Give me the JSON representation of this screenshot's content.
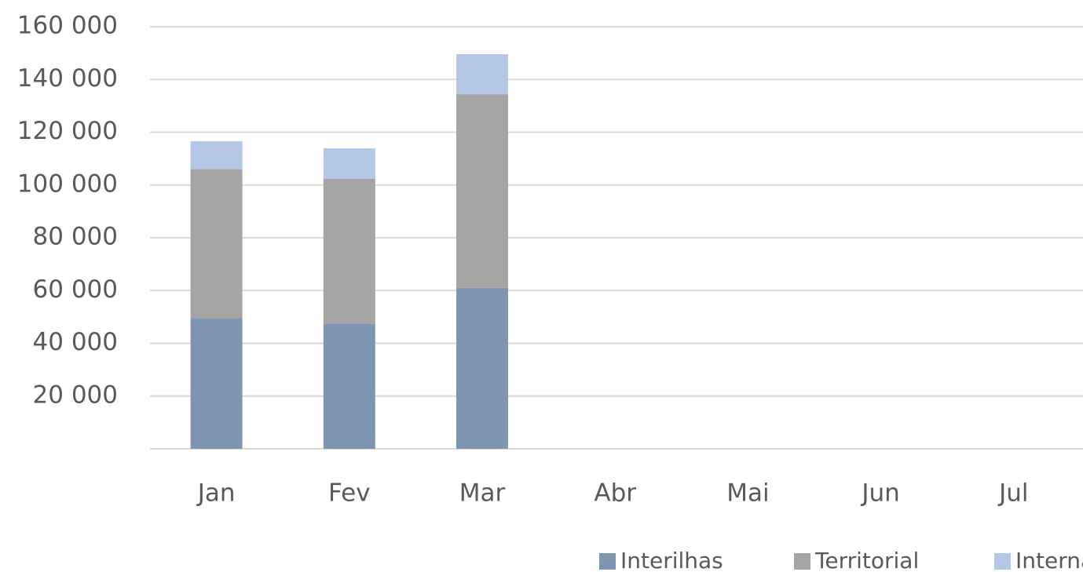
{
  "chart_data": {
    "type": "stacked_bar",
    "categories": [
      "Jan",
      "Fev",
      "Mar",
      "Abr",
      "Mai",
      "Jun",
      "Jul"
    ],
    "series": [
      {
        "name": "Interilhas",
        "color": "#7f96b2",
        "values": [
          49500,
          47500,
          61000,
          null,
          null,
          null,
          null
        ]
      },
      {
        "name": "Territorial",
        "color": "#a5a5a5",
        "values": [
          56500,
          54800,
          73400,
          null,
          null,
          null,
          null
        ]
      },
      {
        "name": "Internacional",
        "color": "#b4c7e7",
        "values": [
          10600,
          11600,
          15200,
          null,
          null,
          null,
          null
        ]
      }
    ],
    "ylim": [
      0,
      160000
    ],
    "yticks": [
      {
        "value": 20000,
        "label": "20 000"
      },
      {
        "value": 40000,
        "label": "40 000"
      },
      {
        "value": 60000,
        "label": "60 000"
      },
      {
        "value": 80000,
        "label": "80 000"
      },
      {
        "value": 100000,
        "label": "100 000"
      },
      {
        "value": 120000,
        "label": "120 000"
      },
      {
        "value": 140000,
        "label": "140 000"
      },
      {
        "value": 160000,
        "label": "160 000"
      }
    ],
    "grid": true,
    "legend": "bottom"
  }
}
